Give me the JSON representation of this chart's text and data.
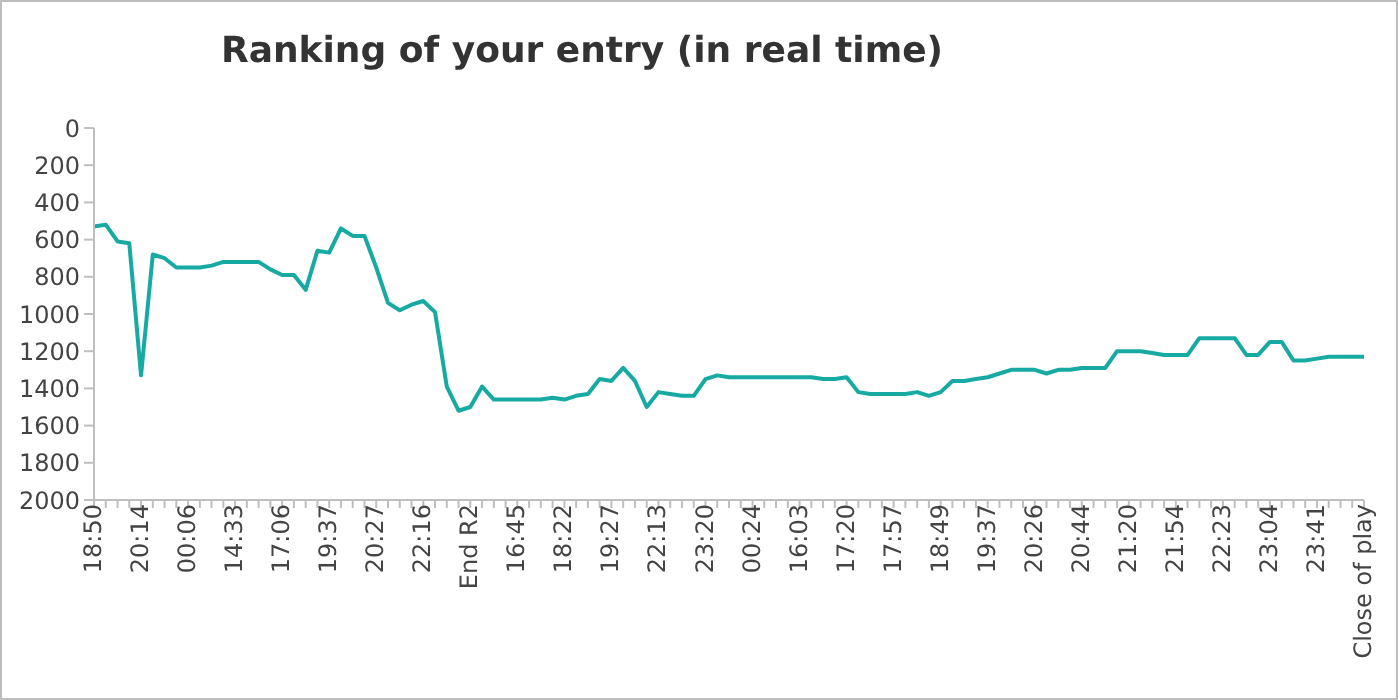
{
  "chart_data": {
    "type": "line",
    "title": "Ranking of your entry (in real time)",
    "categories": [
      "18:50",
      null,
      null,
      null,
      "20:14",
      null,
      null,
      null,
      "00:06",
      null,
      null,
      null,
      "14:33",
      null,
      null,
      null,
      "17:06",
      null,
      null,
      null,
      "19:37",
      null,
      null,
      null,
      "20:27",
      null,
      null,
      null,
      "22:16",
      null,
      null,
      null,
      "End R2",
      null,
      null,
      null,
      "16:45",
      null,
      null,
      null,
      "18:22",
      null,
      null,
      null,
      "19:27",
      null,
      null,
      null,
      "22:13",
      null,
      null,
      null,
      "23:20",
      null,
      null,
      null,
      "00:24",
      null,
      null,
      null,
      "16:03",
      null,
      null,
      null,
      "17:20",
      null,
      null,
      null,
      "17:57",
      null,
      null,
      null,
      "18:49",
      null,
      null,
      null,
      "19:37",
      null,
      null,
      null,
      "20:26",
      null,
      null,
      null,
      "20:44",
      null,
      null,
      null,
      "21:20",
      null,
      null,
      null,
      "21:54",
      null,
      null,
      null,
      "22:23",
      null,
      null,
      null,
      "23:04",
      null,
      null,
      null,
      "23:41",
      null,
      null,
      null,
      "Close of play"
    ],
    "series": [
      {
        "color": "#17aaa3",
        "values": [
          530,
          520,
          610,
          620,
          1330,
          680,
          700,
          750,
          750,
          750,
          740,
          720,
          720,
          720,
          720,
          760,
          790,
          790,
          870,
          660,
          670,
          540,
          580,
          580,
          750,
          940,
          980,
          950,
          930,
          990,
          1390,
          1520,
          1500,
          1390,
          1460,
          1460,
          1460,
          1460,
          1460,
          1450,
          1460,
          1440,
          1430,
          1350,
          1360,
          1290,
          1360,
          1500,
          1420,
          1430,
          1440,
          1440,
          1350,
          1330,
          1340,
          1340,
          1340,
          1340,
          1340,
          1340,
          1340,
          1340,
          1350,
          1350,
          1340,
          1420,
          1430,
          1430,
          1430,
          1430,
          1420,
          1440,
          1420,
          1360,
          1360,
          1350,
          1340,
          1320,
          1300,
          1300,
          1300,
          1320,
          1300,
          1300,
          1290,
          1290,
          1290,
          1200,
          1200,
          1200,
          1210,
          1220,
          1220,
          1220,
          1130,
          1130,
          1130,
          1130,
          1220,
          1220,
          1150,
          1150,
          1250,
          1250,
          1240,
          1230,
          1230,
          1230,
          1230
        ]
      }
    ],
    "ylim": [
      2000,
      0
    ],
    "yticks": [
      0,
      200,
      400,
      600,
      800,
      1000,
      1200,
      1400,
      1600,
      1800,
      2000
    ],
    "grid": false,
    "legend": false,
    "marker": "none",
    "line_style": "solid"
  }
}
